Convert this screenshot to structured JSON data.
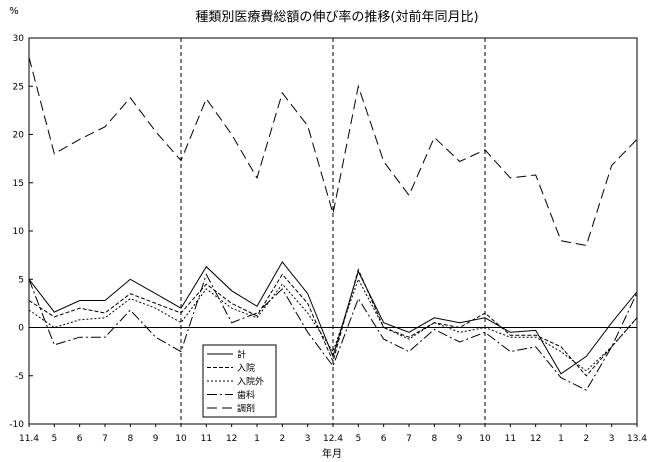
{
  "chart_data": {
    "type": "line",
    "title": "種類別医療費総額の伸び率の推移(対前年同月比)",
    "ylabel": "%",
    "xlabel": "年月",
    "ylim": [
      -10,
      30
    ],
    "yticks": [
      30,
      25,
      20,
      15,
      10,
      5,
      0,
      -5,
      -10
    ],
    "x": [
      "11.4",
      "5",
      "6",
      "7",
      "8",
      "9",
      "10",
      "11",
      "12",
      "1",
      "2",
      "3",
      "12.4",
      "5",
      "6",
      "7",
      "8",
      "9",
      "10",
      "11",
      "12",
      "1",
      "2",
      "3",
      "13.4"
    ],
    "year_dividers": [
      "10",
      "12.4",
      "10"
    ],
    "legend_position": "lower-left",
    "series": [
      {
        "name": "計",
        "values": [
          5.0,
          1.6,
          2.8,
          2.8,
          5.0,
          3.5,
          2.0,
          6.3,
          3.8,
          2.2,
          6.8,
          3.5,
          -3.0,
          5.8,
          0.5,
          -0.5,
          1.0,
          0.5,
          1.0,
          -0.5,
          -0.3,
          -4.8,
          -3.0,
          0.5,
          3.7
        ]
      },
      {
        "name": "入院",
        "values": [
          2.8,
          1.1,
          2.0,
          1.5,
          3.5,
          2.5,
          1.5,
          4.5,
          2.5,
          1.2,
          5.5,
          2.5,
          -3.5,
          6.0,
          0.0,
          -1.0,
          0.5,
          0.0,
          1.5,
          -0.8,
          -0.8,
          -2.0,
          -5.0,
          -2.0,
          1.0
        ]
      },
      {
        "name": "入院外",
        "values": [
          1.8,
          0.0,
          0.8,
          1.0,
          3.0,
          2.0,
          0.5,
          4.0,
          2.0,
          1.0,
          4.5,
          1.5,
          -2.5,
          5.0,
          0.0,
          -1.2,
          0.5,
          -0.5,
          0.0,
          -1.0,
          -1.0,
          -2.5,
          -4.5,
          -2.0,
          1.0
        ]
      },
      {
        "name": "歯科",
        "values": [
          5.0,
          -1.8,
          -1.0,
          -1.0,
          1.8,
          -1.0,
          -2.5,
          5.5,
          0.5,
          1.5,
          4.0,
          -0.5,
          -4.0,
          3.0,
          -1.2,
          -2.5,
          -0.2,
          -1.5,
          -0.5,
          -2.5,
          -2.0,
          -5.2,
          -6.5,
          -2.0,
          3.6
        ]
      },
      {
        "name": "調剤",
        "values": [
          28.0,
          18.0,
          19.5,
          20.8,
          23.8,
          20.3,
          17.3,
          23.7,
          20.0,
          15.5,
          24.3,
          20.9,
          11.8,
          25.0,
          17.2,
          13.7,
          19.7,
          17.2,
          18.4,
          15.5,
          15.8,
          9.0,
          8.5,
          16.8,
          19.5
        ]
      }
    ],
    "colors": {
      "line": "#000000",
      "background": "#ffffff"
    }
  }
}
